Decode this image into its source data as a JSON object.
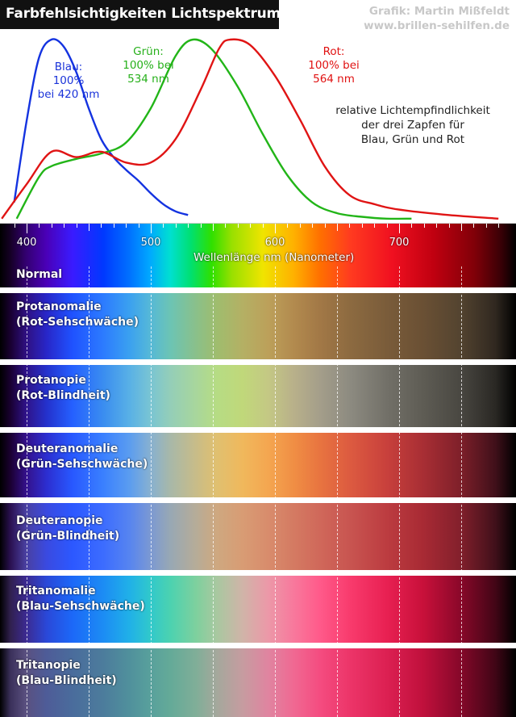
{
  "title": "Farbfehlsichtigkeiten Lichtspektrum",
  "credit": {
    "line1": "Grafik: Martin Mißfeldt",
    "line2": "www.brillen-sehilfen.de"
  },
  "annotations": {
    "blau": [
      "Blau:",
      "100%",
      "bei 420 nm"
    ],
    "gruen": [
      "Grün:",
      "100% bei",
      "534 nm"
    ],
    "rot": [
      "Rot:",
      "100% bei",
      "564 nm"
    ],
    "note": [
      "relative Lichtempfindlichkeit",
      "der drei Zapfen für",
      "Blau, Grün und Rot"
    ]
  },
  "colors": {
    "blau": "#1433e0",
    "gruen": "#22b518",
    "rot": "#e01414"
  },
  "chart_data": {
    "type": "line",
    "title": "Farbfehlsichtigkeiten Lichtspektrum",
    "xlabel": "Wellenlänge nm (Nanometer)",
    "ylabel": "",
    "xlim": [
      380,
      780
    ],
    "ylim": [
      0,
      100
    ],
    "x_ticks": [
      400,
      500,
      600,
      700
    ],
    "series": [
      {
        "name": "Blau",
        "x": [
          390,
          400,
          410,
          420,
          430,
          440,
          450,
          460,
          470,
          480,
          490,
          500,
          510,
          520,
          530
        ],
        "y": [
          10,
          55,
          90,
          100,
          96,
          82,
          62,
          45,
          35,
          28,
          22,
          15,
          9,
          5,
          3
        ]
      },
      {
        "name": "Grün",
        "x": [
          392,
          410,
          420,
          440,
          460,
          480,
          500,
          520,
          534,
          550,
          570,
          590,
          610,
          630,
          650,
          670,
          690,
          710
        ],
        "y": [
          1,
          24,
          30,
          34,
          37,
          43,
          62,
          91,
          100,
          94,
          74,
          48,
          25,
          10,
          4,
          2,
          1,
          1
        ]
      },
      {
        "name": "Rot",
        "x": [
          380,
          400,
          420,
          440,
          460,
          480,
          500,
          520,
          540,
          555,
          564,
          580,
          600,
          620,
          640,
          660,
          680,
          700,
          740,
          780
        ],
        "y": [
          1,
          20,
          38,
          35,
          38,
          32,
          32,
          45,
          72,
          95,
          100,
          97,
          80,
          56,
          30,
          14,
          9,
          6,
          3,
          1
        ]
      }
    ]
  },
  "bands": [
    {
      "label": [
        "Normal"
      ]
    },
    {
      "label": [
        "Protanomalie",
        "(Rot-Sehschwäche)"
      ]
    },
    {
      "label": [
        "Protanopie",
        "(Rot-Blindheit)"
      ]
    },
    {
      "label": [
        "Deuteranomalie",
        "(Grün-Sehschwäche)"
      ]
    },
    {
      "label": [
        "Deuteranopie",
        "(Grün-Blindheit)"
      ]
    },
    {
      "label": [
        "Tritanomalie",
        "(Blau-Sehschwäche)"
      ]
    },
    {
      "label": [
        "Tritanopie",
        "(Blau-Blindheit)"
      ]
    }
  ],
  "dash_lines_nm": [
    400,
    450,
    500,
    550,
    600,
    650,
    700,
    750
  ]
}
